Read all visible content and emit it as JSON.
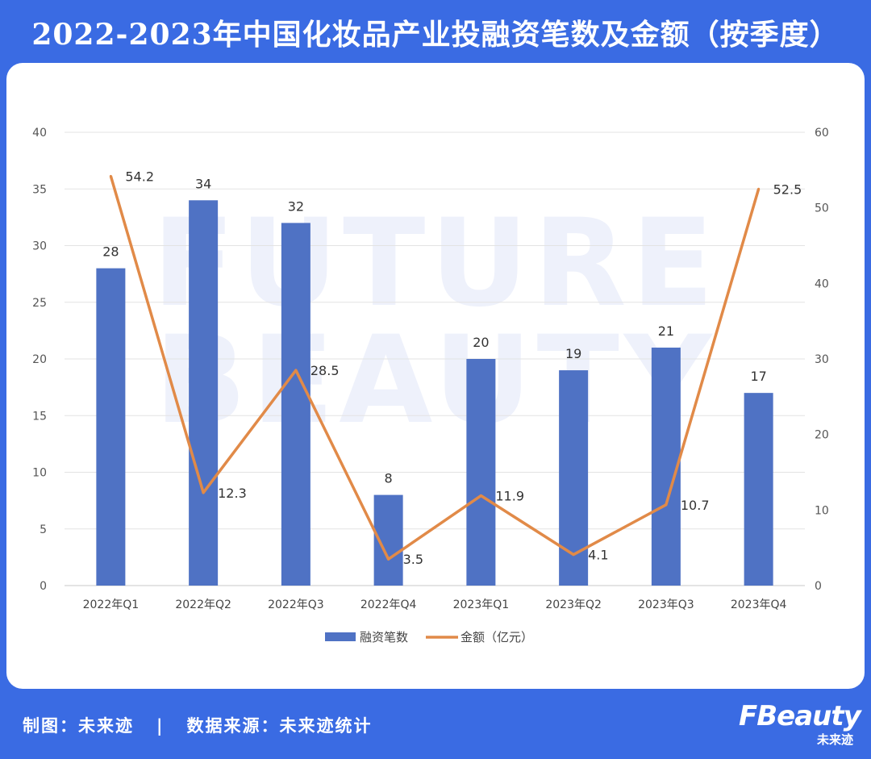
{
  "header": {
    "title": "2022-2023年中国化妆品产业投融资笔数及金额（按季度）"
  },
  "watermark": {
    "line1": "FUTURE",
    "line2": "BEAUTY"
  },
  "chart_data": {
    "type": "bar+line",
    "categories": [
      "2022年Q1",
      "2022年Q2",
      "2022年Q3",
      "2022年Q4",
      "2023年Q1",
      "2023年Q2",
      "2023年Q3",
      "2023年Q4"
    ],
    "series": [
      {
        "name": "融资笔数",
        "type": "bar",
        "axis": "left",
        "color": "#4f72c4",
        "values": [
          28,
          34,
          32,
          8,
          20,
          19,
          21,
          17
        ]
      },
      {
        "name": "金额（亿元）",
        "type": "line",
        "axis": "right",
        "color": "#e18a48",
        "values": [
          54.2,
          12.3,
          28.5,
          3.5,
          11.9,
          4.1,
          10.7,
          52.5
        ]
      }
    ],
    "left_axis": {
      "min": 0,
      "max": 40,
      "step": 5
    },
    "right_axis": {
      "min": 0,
      "max": 60,
      "step": 10
    },
    "grid": true,
    "legend": "bottom-center"
  },
  "footer": {
    "credit": "制图：未来迹   |   数据来源：未来迹统计",
    "logo_text": "FBeauty",
    "logo_sub": "未来迹"
  }
}
